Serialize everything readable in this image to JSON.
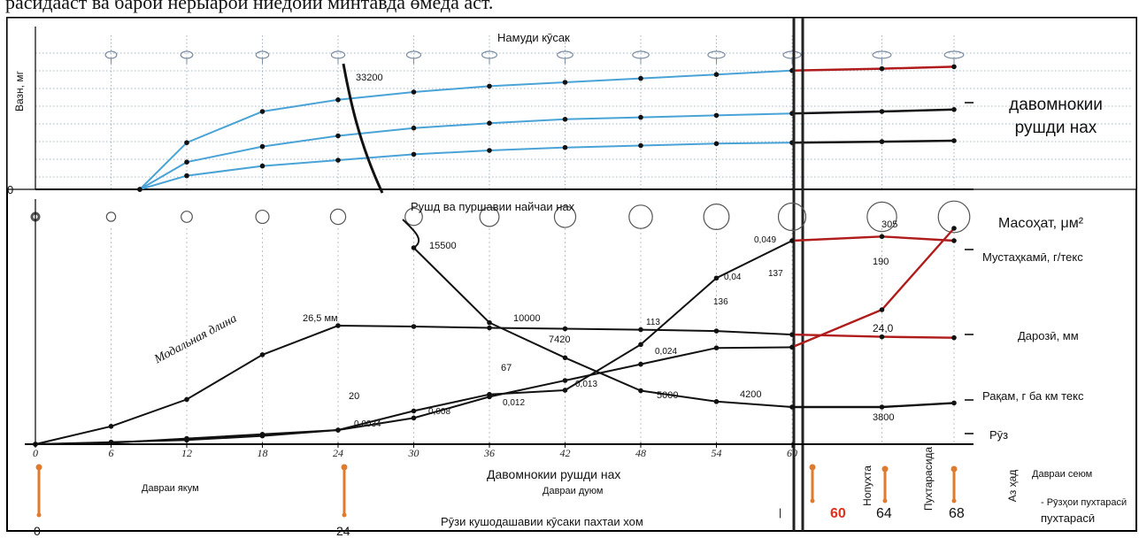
{
  "top_text": "расидааст ва барои нерыарои ниедоии минтавда өмеда аст.",
  "top_panel": {
    "title": "Намуди кӯсак",
    "ylabel": "Вазн, мг",
    "zero": "0",
    "marker_33200": "33200"
  },
  "mid_panel": {
    "title": "Рушд ва пуршавии найчаи нах",
    "modal_length": "Модальная длина",
    "mm_label": "26,5 мм",
    "numbers": {
      "n15500": "15500",
      "n10000": "10000",
      "n7420": "7420",
      "n5000": "5000",
      "n4200": "4200",
      "n3800": "3800",
      "n305": "305",
      "n190": "190",
      "n240": "24,0",
      "n137": "137",
      "n136": "136",
      "n113": "113",
      "n67": "67",
      "n20": "20",
      "n0049": "0,049",
      "n004": "0,04",
      "n0024": "0,024",
      "n0013": "0,013",
      "n0012": "0,012",
      "n0008": "0,008",
      "n00034": "0,0034"
    }
  },
  "x_ticks": [
    "0",
    "6",
    "12",
    "18",
    "24",
    "30",
    "36",
    "42",
    "48",
    "54",
    "60"
  ],
  "right_labels": {
    "growth_duration": "давомнокии рушди нах",
    "area": "Масоҳат, μм²",
    "strength": "Мустаҳкамӣ, г/текс",
    "length": "Дарозӣ, мм",
    "number": "Рақам, г ба км текс",
    "ruz": "Рӯз"
  },
  "bottom": {
    "growth_duration": "Давомнокии рушди нах",
    "period1": "Давраи якум",
    "period2": "Давраи дуюм",
    "period3": "Давраи сеюм",
    "boll_days": "Рӯзи кушодашавии кӯсаки пахтаи хом",
    "ripe_days": "- Рӯзҳои пухтарасӣ",
    "day0": "0",
    "day24": "24",
    "day60": "60",
    "day64": "64",
    "day68": "68",
    "unripe": "Нопухта",
    "ripe": "Пухтарасида",
    "overripe": "Аз ҳад"
  },
  "chart_data": {
    "type": "line",
    "x": [
      0,
      6,
      12,
      18,
      24,
      30,
      36,
      42,
      48,
      54,
      60,
      64,
      68
    ],
    "xlabel": "Рӯз",
    "panels": [
      {
        "title": "Намуди кӯсак",
        "ylabel": "Вазн, мг",
        "series": [
          {
            "values": [
              null,
              0,
              0.48,
              0.8,
              0.92,
              1.0,
              1.06,
              1.1,
              1.14,
              1.18,
              1.22,
              1.24,
              1.26
            ]
          },
          {
            "values": [
              null,
              0,
              0.28,
              0.44,
              0.55,
              0.63,
              0.68,
              0.72,
              0.74,
              0.76,
              0.78,
              0.8,
              0.82
            ]
          },
          {
            "values": [
              null,
              0,
              0.14,
              0.24,
              0.3,
              0.36,
              0.4,
              0.43,
              0.45,
              0.47,
              0.48,
              0.49,
              0.5
            ]
          }
        ]
      },
      {
        "title": "Рушд ва пуршавии найчаи нах",
        "series": [
          {
            "name": "Дарозӣ, мм",
            "x": [
              0,
              6,
              12,
              18,
              24,
              30,
              36,
              42,
              48,
              54,
              60,
              64,
              68
            ],
            "values": [
              0,
              4,
              10,
              20,
              26.5,
              26.3,
              26.0,
              25.8,
              25.6,
              25.3,
              24.5,
              24.0,
              23.8
            ]
          },
          {
            "name": "Рақам, г ба км текс",
            "x": [
              24,
              30,
              36,
              42,
              48,
              54,
              60,
              64,
              68
            ],
            "values": [
              null,
              15500,
              10000,
              7420,
              5000,
              4200,
              3800,
              3800,
              4100
            ]
          },
          {
            "name": "Масоҳат, μм²",
            "x": [
              0,
              6,
              12,
              18,
              24,
              30,
              36,
              42,
              48,
              54,
              60,
              64,
              68
            ],
            "values": [
              0,
              0.0005,
              0.001,
              0.002,
              0.0034,
              0.008,
              0.012,
              0.013,
              0.024,
              0.04,
              0.049,
              0.05,
              0.049
            ]
          },
          {
            "name": "Мустаҳкамӣ, г/текс",
            "x": [
              0,
              6,
              12,
              18,
              24,
              30,
              36,
              42,
              48,
              54,
              60,
              64,
              68
            ],
            "values": [
              0,
              2,
              8,
              14,
              20,
              37,
              67,
              90,
              113,
              136,
              137,
              190,
              305
            ]
          }
        ]
      }
    ]
  }
}
